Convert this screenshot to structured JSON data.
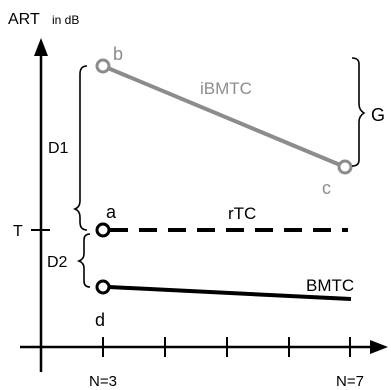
{
  "diagram": {
    "axis_title_main": "ART",
    "axis_title_unit": "in dB",
    "y_tick_label": "T",
    "x_tick_labels": [
      "N=3",
      "N=7"
    ],
    "lines": [
      {
        "name": "iBMTC",
        "style": "solid",
        "color": "#8c8c8c",
        "start_label": "b",
        "end_label": "c"
      },
      {
        "name": "rTC",
        "style": "dashed",
        "color": "#000000",
        "start_label": "a",
        "end_label": ""
      },
      {
        "name": "BMTC",
        "style": "solid",
        "color": "#000000",
        "start_label": "d",
        "end_label": ""
      }
    ],
    "brackets": {
      "d1": "D1",
      "d2": "D2",
      "g": "G"
    }
  }
}
